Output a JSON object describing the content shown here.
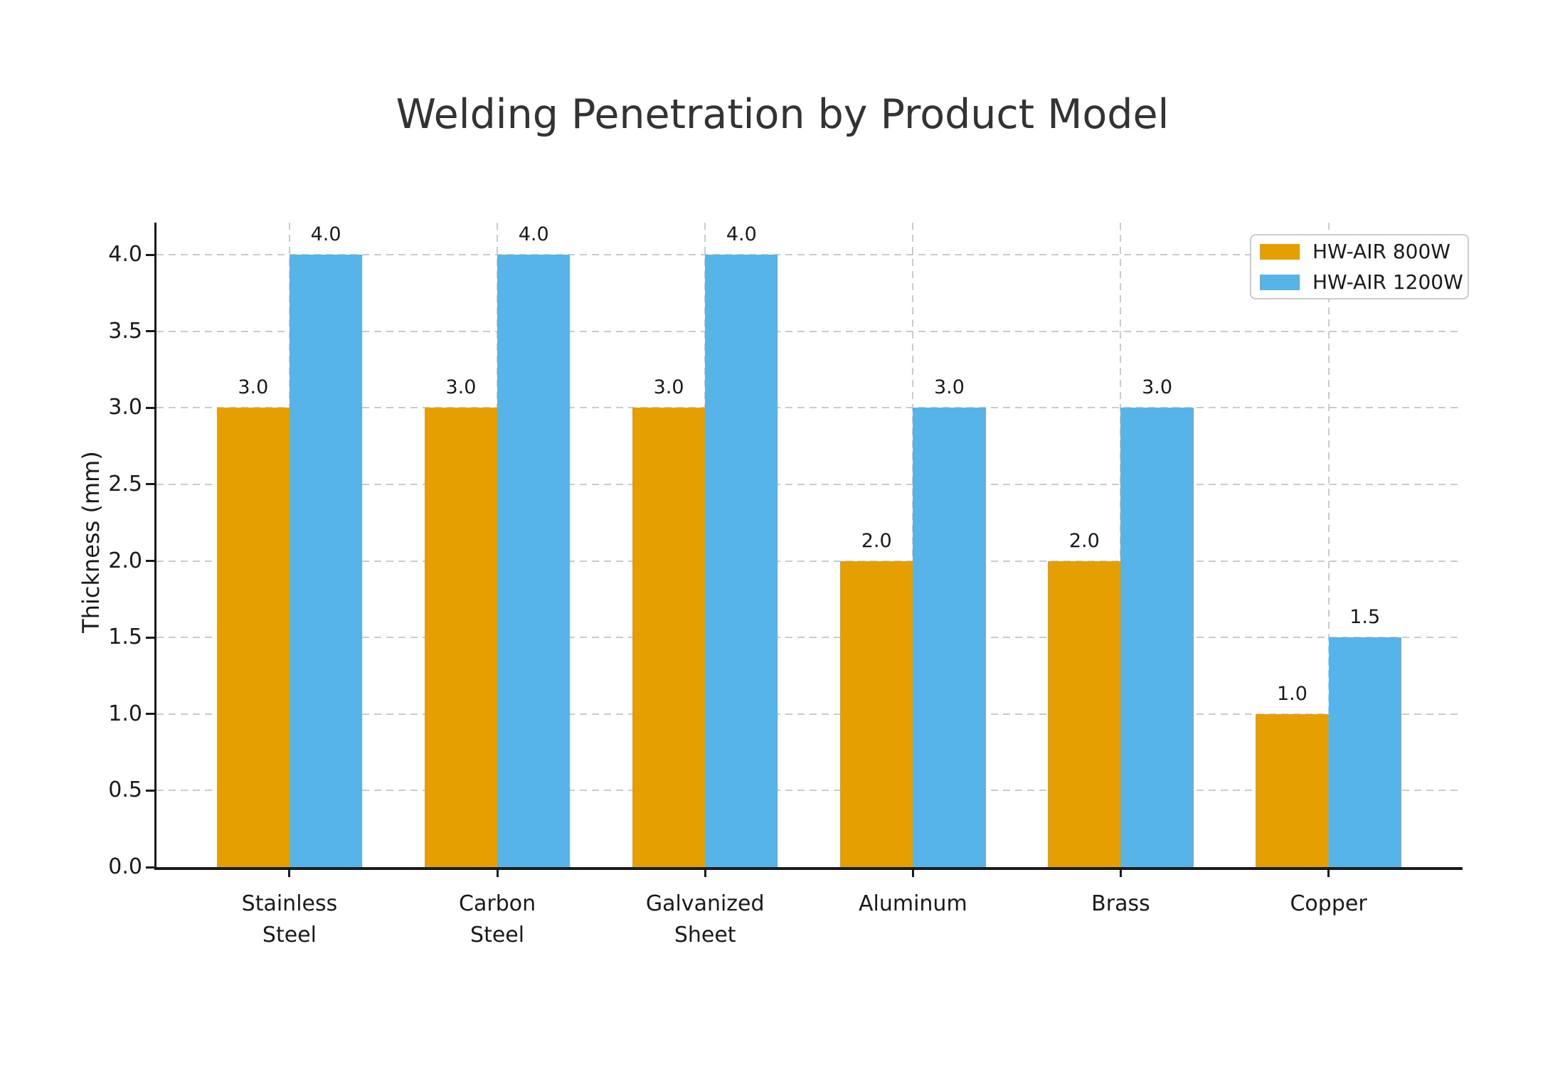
{
  "title": "Welding Penetration by Product Model",
  "chart_data": {
    "type": "bar",
    "title": "Welding Penetration by Product Model",
    "xlabel": "",
    "ylabel": "Thickness (mm)",
    "categories": [
      "Stainless\nSteel",
      "Carbon\nSteel",
      "Galvanized\nSheet",
      "Aluminum",
      "Brass",
      "Copper"
    ],
    "series": [
      {
        "name": "HW-AIR 800W",
        "color": "#E69F00",
        "values": [
          3.0,
          3.0,
          3.0,
          2.0,
          2.0,
          1.0
        ]
      },
      {
        "name": "HW-AIR 1200W",
        "color": "#56B4E9",
        "values": [
          4.0,
          4.0,
          4.0,
          3.0,
          3.0,
          1.5
        ]
      }
    ],
    "yticks": [
      0.0,
      0.5,
      1.0,
      1.5,
      2.0,
      2.5,
      3.0,
      3.5,
      4.0
    ],
    "ylim": [
      0,
      4.21
    ],
    "bar_width": 0.35,
    "grid": "both-dashed",
    "legend_position": "upper right",
    "value_labels": "one_decimal_above_bars"
  },
  "colors": {
    "background": "#ffffff",
    "bar_orange": "#E69F00",
    "bar_blue": "#56B4E9",
    "gridline": "#cbcbcb",
    "spine": "#1a1a1a",
    "text": "#1a1a1a",
    "title_text": "#333333",
    "legend_border": "#cccccc"
  }
}
